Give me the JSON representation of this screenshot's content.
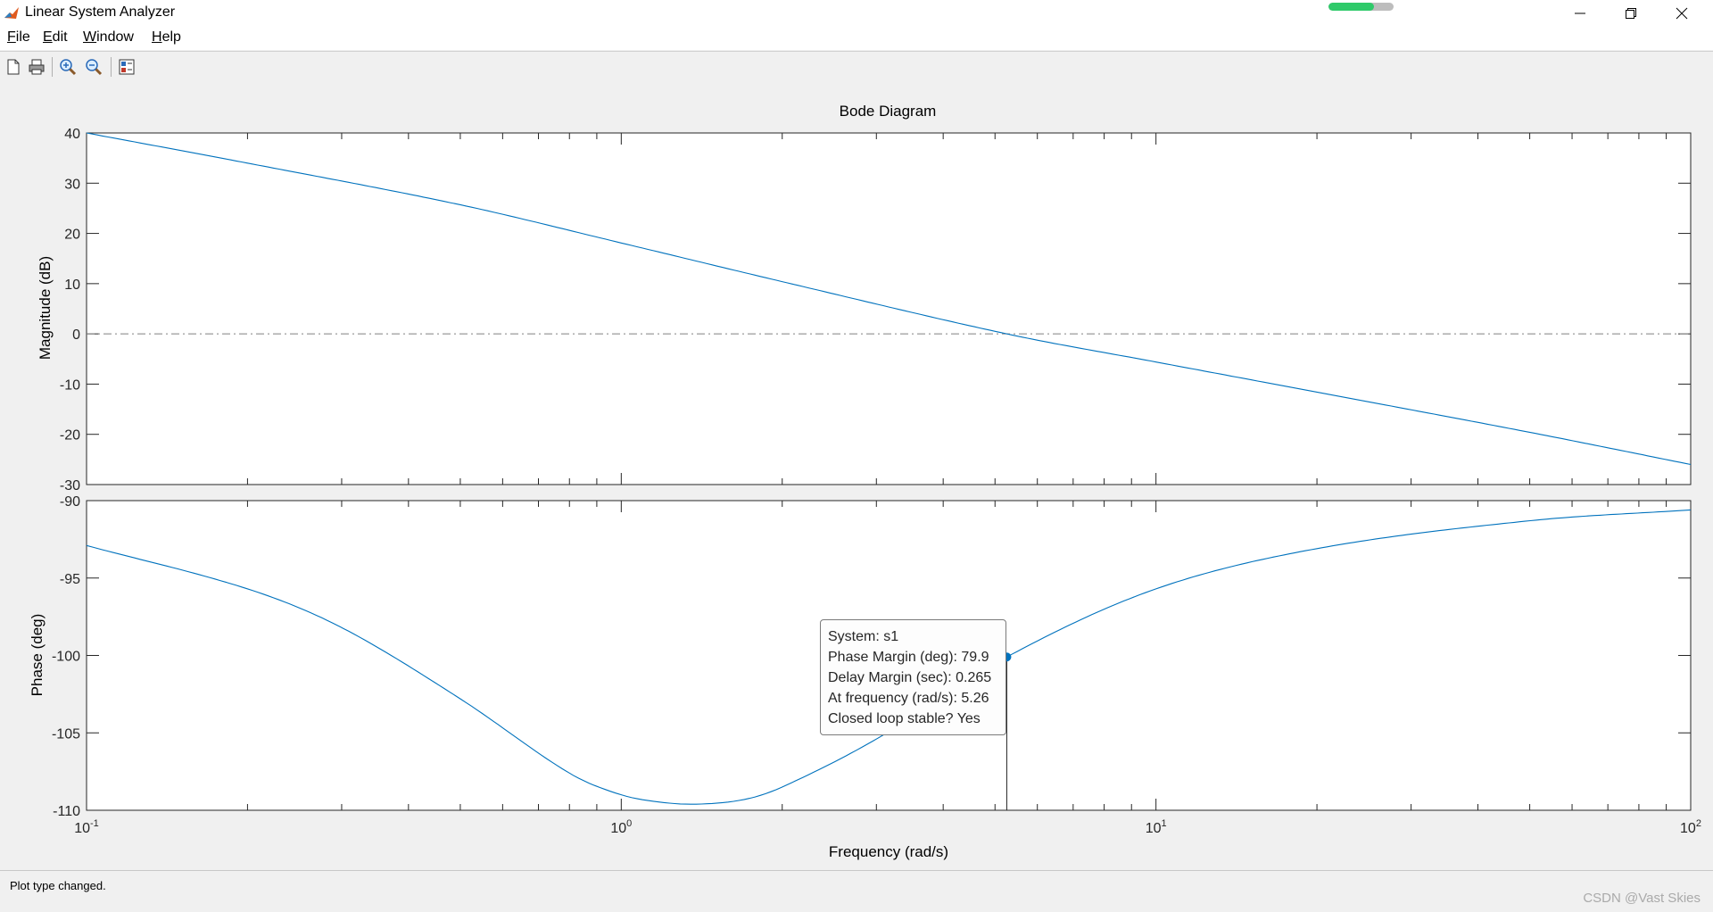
{
  "window": {
    "title": "Linear System Analyzer",
    "progress": 0.7,
    "controls": [
      "minimize-icon",
      "restore-icon",
      "close-icon"
    ]
  },
  "menu": {
    "file": {
      "mnemonic": "F",
      "rest": "ile"
    },
    "edit": {
      "mnemonic": "E",
      "rest": "dit"
    },
    "window": {
      "mnemonic": "W",
      "rest": "indow"
    },
    "help": {
      "mnemonic": "H",
      "rest": "elp"
    }
  },
  "toolbar": {
    "icons": [
      "new-icon",
      "print-icon",
      "zoom-in-icon",
      "zoom-out-icon",
      "plot-config-icon"
    ]
  },
  "plot": {
    "title": "Bode Diagram",
    "xlabel": "Frequency  (rad/s)",
    "mag_ylabel": "Magnitude (dB)",
    "phase_ylabel": "Phase (deg)",
    "mag_ticks": [
      "40",
      "30",
      "20",
      "10",
      "0",
      "-10",
      "-20",
      "-30"
    ],
    "phase_ticks": [
      "-90",
      "-95",
      "-100",
      "-105",
      "-110"
    ],
    "x_ticks": [
      {
        "base": "10",
        "exp": "-1"
      },
      {
        "base": "10",
        "exp": "0"
      },
      {
        "base": "10",
        "exp": "1"
      },
      {
        "base": "10",
        "exp": "2"
      }
    ]
  },
  "datatip": {
    "line1": "System: s1",
    "line2": "Phase Margin (deg): 79.9",
    "line3": "Delay Margin (sec): 0.265",
    "line4": "At frequency (rad/s): 5.26",
    "line5": "Closed loop stable? Yes"
  },
  "chart_data": {
    "type": "line",
    "title": "Bode Diagram",
    "xlabel": "Frequency  (rad/s)",
    "x_scale": "log",
    "xlim": [
      0.1,
      100
    ],
    "panels": [
      {
        "name": "magnitude",
        "ylabel": "Magnitude (dB)",
        "ylim": [
          -30,
          40
        ],
        "reference_line": 0,
        "x": [
          0.1,
          0.2,
          0.5,
          1,
          2,
          5.26,
          10,
          20,
          50,
          100
        ],
        "y": [
          40,
          34,
          25.7,
          18.1,
          10.4,
          0,
          -5.6,
          -11.6,
          -19.6,
          -26
        ]
      },
      {
        "name": "phase",
        "ylabel": "Phase (deg)",
        "ylim": [
          -110,
          -90
        ],
        "x": [
          0.1,
          0.2,
          0.3,
          0.5,
          0.8,
          1,
          1.2,
          1.4,
          1.7,
          2,
          3,
          5.26,
          10,
          20,
          50,
          100
        ],
        "y": [
          -92.9,
          -95.7,
          -98.2,
          -102.8,
          -107.6,
          -109.0,
          -109.5,
          -109.6,
          -109.3,
          -108.5,
          -105.4,
          -100.1,
          -95.7,
          -93.1,
          -91.3,
          -90.6
        ]
      }
    ],
    "marker": {
      "x": 5.26,
      "y": -100.1
    }
  },
  "status": {
    "text": "Plot type changed.",
    "watermark": "CSDN @Vast Skies"
  },
  "colors": {
    "line": "#0072bd",
    "marker": "#0072bd",
    "reference": "#808080"
  }
}
